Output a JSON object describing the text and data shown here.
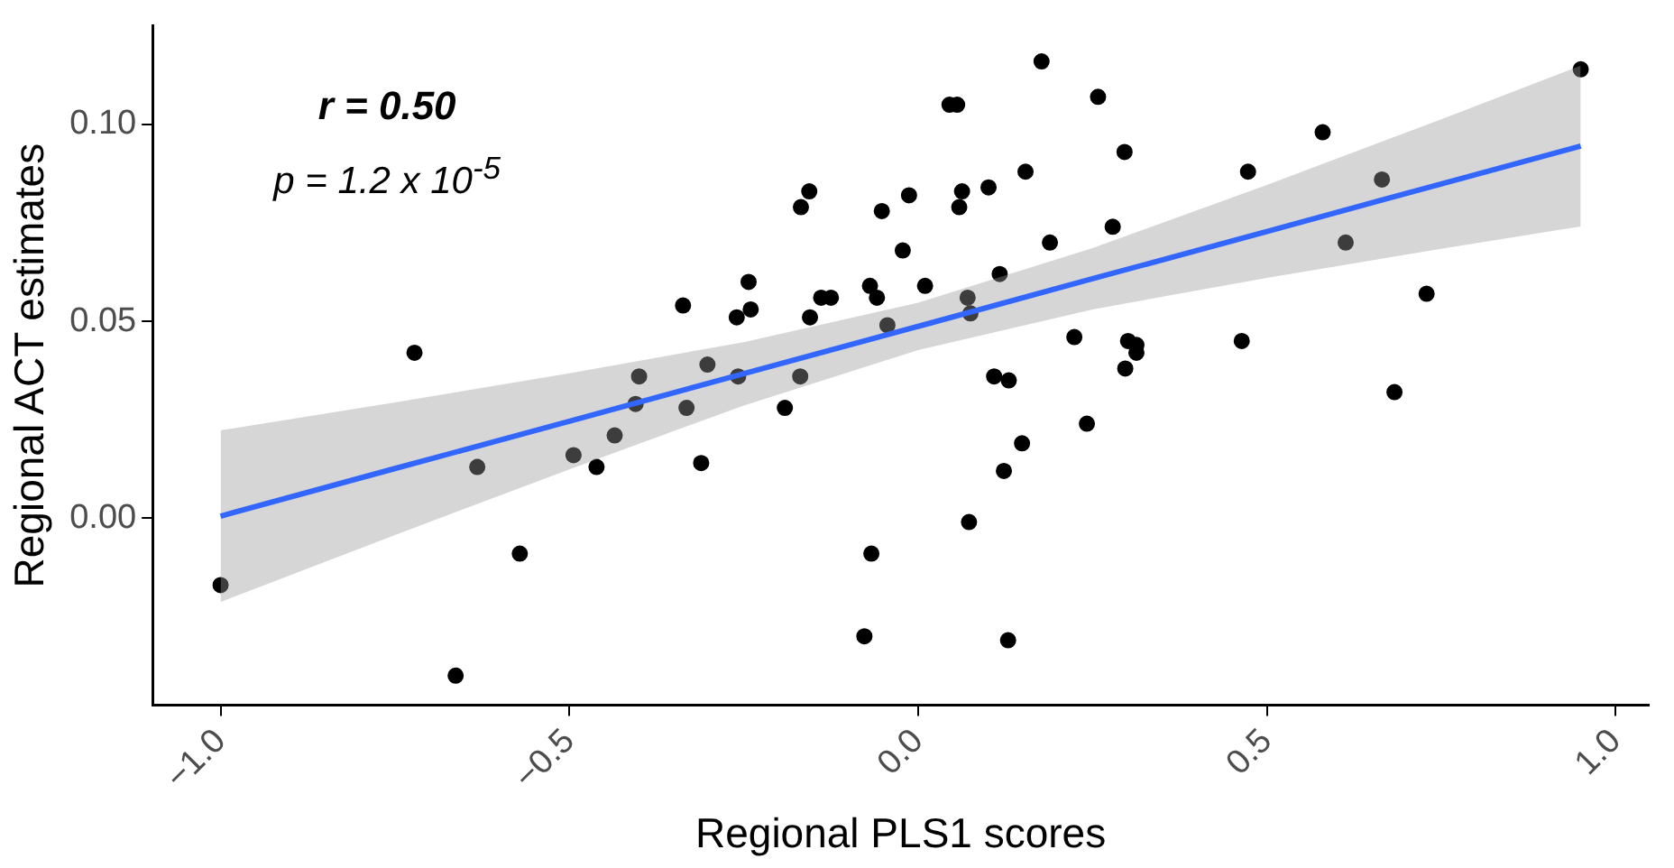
{
  "chart_data": {
    "type": "scatter",
    "xlabel": "Regional PLS1 scores",
    "ylabel": "Regional ACT estimates",
    "annotations": [
      "r = 0.50",
      "p = 1.2 x 10$^{-5}$"
    ],
    "xlim": [
      -1.0975,
      1.0475
    ],
    "ylim": [
      -0.0475,
      0.125
    ],
    "xticks": [
      {
        "value": -1,
        "label": "−1.0"
      },
      {
        "value": -0.5,
        "label": "−0.5"
      },
      {
        "value": 0,
        "label": "0.0"
      },
      {
        "value": 0.5,
        "label": "0.5"
      },
      {
        "value": 1,
        "label": "1.0"
      }
    ],
    "yticks": [
      {
        "value": 0,
        "label": "0.00"
      },
      {
        "value": 0.05,
        "label": "0.05"
      },
      {
        "value": 0.1,
        "label": "0.10"
      }
    ],
    "grid": false,
    "legend": false,
    "marker": "circle",
    "series": [
      {
        "type": "scatter",
        "color": "#000000",
        "x": [
          -1.0,
          -0.722,
          -0.632,
          -0.571,
          -0.663,
          -0.494,
          -0.461,
          -0.435,
          -0.405,
          -0.4,
          -0.337,
          -0.332,
          -0.311,
          -0.302,
          -0.26,
          -0.258,
          -0.243,
          -0.24,
          -0.191,
          -0.169,
          -0.168,
          -0.156,
          -0.155,
          -0.139,
          -0.125,
          -0.077,
          -0.069,
          -0.067,
          -0.059,
          -0.052,
          -0.044,
          -0.022,
          -0.013,
          0.01,
          0.045,
          0.056,
          0.059,
          0.063,
          0.071,
          0.075,
          0.073,
          0.101,
          0.109,
          0.117,
          0.123,
          0.13,
          0.129,
          0.149,
          0.154,
          0.177,
          0.189,
          0.224,
          0.242,
          0.258,
          0.279,
          0.296,
          0.297,
          0.301,
          0.313,
          0.313,
          0.464,
          0.473,
          0.58,
          0.613,
          0.665,
          0.683,
          0.729,
          0.95
        ],
        "values": [
          -0.017,
          0.042,
          0.013,
          -0.009,
          -0.04,
          0.016,
          0.013,
          0.021,
          0.029,
          0.036,
          0.054,
          0.028,
          0.014,
          0.039,
          0.051,
          0.036,
          0.06,
          0.053,
          0.028,
          0.036,
          0.079,
          0.083,
          0.051,
          0.056,
          0.056,
          -0.03,
          0.059,
          -0.009,
          0.056,
          0.078,
          0.049,
          0.068,
          0.082,
          0.059,
          0.105,
          0.105,
          0.079,
          0.083,
          0.056,
          0.052,
          -0.001,
          0.084,
          0.036,
          0.062,
          0.012,
          0.035,
          -0.031,
          0.019,
          0.088,
          0.116,
          0.07,
          0.046,
          0.024,
          0.107,
          0.074,
          0.093,
          0.038,
          0.045,
          0.044,
          0.042,
          0.045,
          0.088,
          0.098,
          0.07,
          0.086,
          0.032,
          0.057,
          0.114
        ]
      },
      {
        "type": "line",
        "color": "#3366ff",
        "marker": "none",
        "x": [
          -1,
          -0.75,
          -0.5,
          -0.25,
          0,
          0.25,
          0.5,
          0.75,
          0.95
        ],
        "values": [
          0.0005,
          0.0126,
          0.0246,
          0.0367,
          0.0487,
          0.0608,
          0.0728,
          0.0849,
          0.0945
        ],
        "lower": [
          -0.0213,
          -0.0043,
          0.0124,
          0.0286,
          0.0427,
          0.053,
          0.061,
          0.0684,
          0.0741
        ],
        "upper": [
          0.0223,
          0.0294,
          0.0368,
          0.0447,
          0.0547,
          0.0686,
          0.0846,
          0.1013,
          0.1149
        ]
      }
    ]
  }
}
